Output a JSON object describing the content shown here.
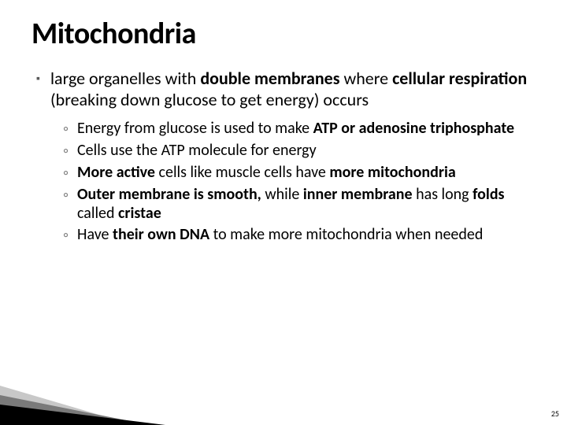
{
  "title": {
    "text": "Mitochondria",
    "fontsize": 38,
    "color": "#000000",
    "weight": 700
  },
  "body_fontsize": 22,
  "sub_fontsize": 20,
  "main": {
    "runs": [
      {
        "t": "large organelles with ",
        "b": false
      },
      {
        "t": "double membranes",
        "b": true
      },
      {
        "t": " where ",
        "b": false
      },
      {
        "t": "cellular respiration",
        "b": true
      },
      {
        "t": " (breaking down glucose to get energy) occurs",
        "b": false
      }
    ]
  },
  "subs": [
    {
      "runs": [
        {
          "t": "Energy from glucose is used to make ",
          "b": false
        },
        {
          "t": "ATP or adenosine triphosphate",
          "b": true
        }
      ]
    },
    {
      "runs": [
        {
          "t": "Cells use the ATP molecule for energy",
          "b": false
        }
      ]
    },
    {
      "runs": [
        {
          "t": "More active ",
          "b": true
        },
        {
          "t": "cells like muscle cells have ",
          "b": false
        },
        {
          "t": "more mitochondria",
          "b": true
        }
      ]
    },
    {
      "runs": [
        {
          "t": "Outer membrane is smooth, ",
          "b": true
        },
        {
          "t": "while ",
          "b": false
        },
        {
          "t": "inner membrane ",
          "b": true
        },
        {
          "t": "has long ",
          "b": false
        },
        {
          "t": "folds ",
          "b": true
        },
        {
          "t": "called ",
          "b": false
        },
        {
          "t": "cristae",
          "b": true
        }
      ]
    },
    {
      "runs": [
        {
          "t": "Have ",
          "b": false
        },
        {
          "t": "their own DNA ",
          "b": true
        },
        {
          "t": "to make more mitochondria when needed",
          "b": false
        }
      ]
    }
  ],
  "page_number": "25",
  "bullet_glyph": "▪",
  "sub_glyph": "◦",
  "wedge": {
    "light": "#c8c8c8",
    "mid": "#7a7a7a",
    "dark": "#000000"
  }
}
